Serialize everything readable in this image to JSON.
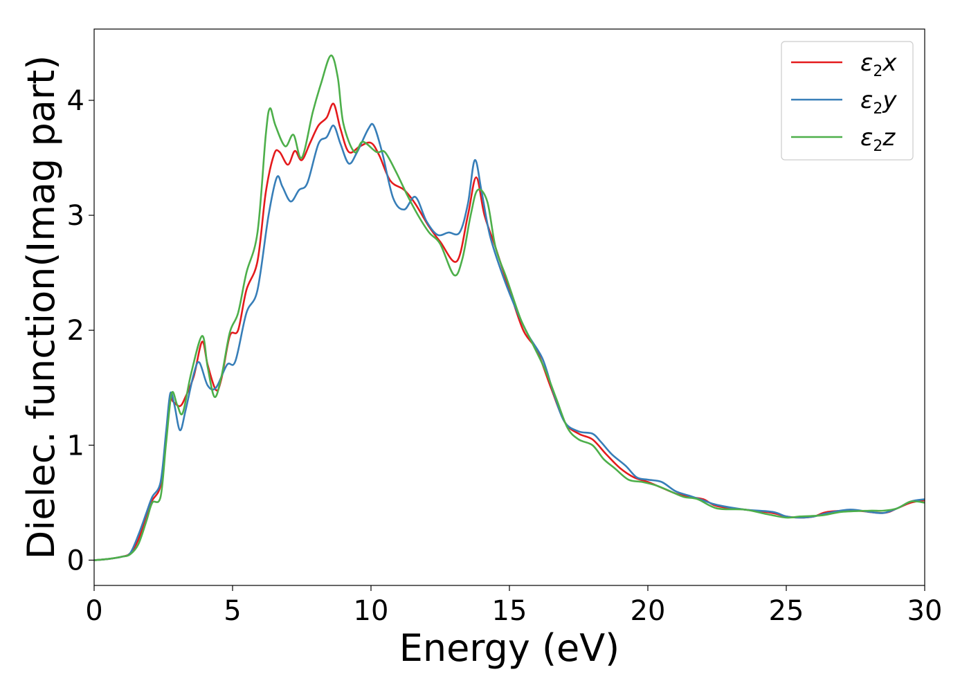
{
  "chart_data": {
    "type": "line",
    "xlabel": "Energy (eV)",
    "ylabel": "Dielec. function(Imag part)",
    "xlim": [
      0,
      30
    ],
    "ylim": [
      -0.22,
      4.62
    ],
    "xticks": [
      0,
      5,
      10,
      15,
      20,
      25,
      30
    ],
    "yticks": [
      0,
      1,
      2,
      3,
      4
    ],
    "grid": false,
    "legend_position": "top-right",
    "series": [
      {
        "name": "ε2x",
        "legend": {
          "symbol": "ε",
          "sub": "2",
          "axis": "x"
        },
        "color": "#e41a1c",
        "points": [
          [
            0,
            0
          ],
          [
            0.5,
            0.01
          ],
          [
            1,
            0.03
          ],
          [
            1.3,
            0.06
          ],
          [
            1.6,
            0.18
          ],
          [
            1.9,
            0.4
          ],
          [
            2.1,
            0.52
          ],
          [
            2.4,
            0.65
          ],
          [
            2.6,
            1.05
          ],
          [
            2.75,
            1.4
          ],
          [
            2.85,
            1.38
          ],
          [
            3.1,
            1.34
          ],
          [
            3.3,
            1.42
          ],
          [
            3.6,
            1.6
          ],
          [
            3.9,
            1.9
          ],
          [
            4.1,
            1.7
          ],
          [
            4.4,
            1.48
          ],
          [
            4.6,
            1.58
          ],
          [
            4.9,
            1.95
          ],
          [
            5.2,
            2.0
          ],
          [
            5.5,
            2.35
          ],
          [
            5.9,
            2.6
          ],
          [
            6.2,
            3.2
          ],
          [
            6.5,
            3.53
          ],
          [
            6.7,
            3.55
          ],
          [
            7.0,
            3.44
          ],
          [
            7.25,
            3.56
          ],
          [
            7.5,
            3.48
          ],
          [
            7.8,
            3.63
          ],
          [
            8.1,
            3.78
          ],
          [
            8.4,
            3.85
          ],
          [
            8.65,
            3.97
          ],
          [
            8.9,
            3.75
          ],
          [
            9.2,
            3.55
          ],
          [
            9.6,
            3.6
          ],
          [
            10.0,
            3.63
          ],
          [
            10.3,
            3.52
          ],
          [
            10.7,
            3.3
          ],
          [
            11.2,
            3.22
          ],
          [
            11.6,
            3.1
          ],
          [
            12.1,
            2.9
          ],
          [
            12.5,
            2.77
          ],
          [
            13.1,
            2.6
          ],
          [
            13.5,
            3.0
          ],
          [
            13.8,
            3.33
          ],
          [
            14.1,
            3.0
          ],
          [
            14.5,
            2.72
          ],
          [
            15.0,
            2.35
          ],
          [
            15.5,
            2.0
          ],
          [
            16.0,
            1.82
          ],
          [
            16.5,
            1.5
          ],
          [
            17.0,
            1.2
          ],
          [
            17.5,
            1.1
          ],
          [
            18.0,
            1.05
          ],
          [
            18.5,
            0.92
          ],
          [
            19.0,
            0.8
          ],
          [
            19.5,
            0.72
          ],
          [
            20.0,
            0.68
          ],
          [
            20.5,
            0.63
          ],
          [
            21.0,
            0.58
          ],
          [
            21.5,
            0.55
          ],
          [
            22.0,
            0.53
          ],
          [
            22.5,
            0.47
          ],
          [
            23.5,
            0.44
          ],
          [
            24.5,
            0.41
          ],
          [
            25.0,
            0.38
          ],
          [
            25.5,
            0.37
          ],
          [
            26.0,
            0.38
          ],
          [
            26.5,
            0.42
          ],
          [
            27.5,
            0.43
          ],
          [
            28.5,
            0.41
          ],
          [
            29.0,
            0.45
          ],
          [
            29.5,
            0.5
          ],
          [
            30.0,
            0.52
          ]
        ]
      },
      {
        "name": "ε2y",
        "legend": {
          "symbol": "ε",
          "sub": "2",
          "axis": "y"
        },
        "color": "#377eb8",
        "points": [
          [
            0,
            0
          ],
          [
            0.5,
            0.01
          ],
          [
            1,
            0.03
          ],
          [
            1.3,
            0.06
          ],
          [
            1.6,
            0.22
          ],
          [
            1.9,
            0.42
          ],
          [
            2.1,
            0.55
          ],
          [
            2.4,
            0.68
          ],
          [
            2.6,
            1.12
          ],
          [
            2.75,
            1.45
          ],
          [
            2.9,
            1.35
          ],
          [
            3.1,
            1.13
          ],
          [
            3.3,
            1.3
          ],
          [
            3.6,
            1.62
          ],
          [
            3.8,
            1.72
          ],
          [
            4.1,
            1.52
          ],
          [
            4.4,
            1.5
          ],
          [
            4.8,
            1.7
          ],
          [
            5.1,
            1.73
          ],
          [
            5.5,
            2.15
          ],
          [
            5.9,
            2.35
          ],
          [
            6.3,
            3.0
          ],
          [
            6.6,
            3.33
          ],
          [
            6.8,
            3.25
          ],
          [
            7.1,
            3.12
          ],
          [
            7.4,
            3.22
          ],
          [
            7.7,
            3.28
          ],
          [
            8.1,
            3.62
          ],
          [
            8.4,
            3.68
          ],
          [
            8.65,
            3.78
          ],
          [
            8.9,
            3.62
          ],
          [
            9.2,
            3.45
          ],
          [
            9.5,
            3.55
          ],
          [
            9.9,
            3.75
          ],
          [
            10.1,
            3.78
          ],
          [
            10.4,
            3.55
          ],
          [
            10.8,
            3.15
          ],
          [
            11.2,
            3.05
          ],
          [
            11.6,
            3.16
          ],
          [
            12.0,
            2.95
          ],
          [
            12.4,
            2.83
          ],
          [
            12.8,
            2.85
          ],
          [
            13.2,
            2.85
          ],
          [
            13.5,
            3.1
          ],
          [
            13.75,
            3.48
          ],
          [
            14.0,
            3.2
          ],
          [
            14.3,
            2.82
          ],
          [
            14.8,
            2.45
          ],
          [
            15.3,
            2.15
          ],
          [
            15.7,
            1.95
          ],
          [
            16.2,
            1.75
          ],
          [
            16.6,
            1.45
          ],
          [
            17.0,
            1.2
          ],
          [
            17.5,
            1.12
          ],
          [
            18.0,
            1.1
          ],
          [
            18.3,
            1.03
          ],
          [
            18.7,
            0.92
          ],
          [
            19.2,
            0.82
          ],
          [
            19.6,
            0.72
          ],
          [
            20.0,
            0.7
          ],
          [
            20.5,
            0.68
          ],
          [
            21.0,
            0.6
          ],
          [
            21.5,
            0.56
          ],
          [
            22.0,
            0.52
          ],
          [
            22.5,
            0.48
          ],
          [
            23.5,
            0.44
          ],
          [
            24.5,
            0.42
          ],
          [
            25.0,
            0.38
          ],
          [
            25.5,
            0.37
          ],
          [
            26.0,
            0.38
          ],
          [
            26.5,
            0.41
          ],
          [
            27.3,
            0.44
          ],
          [
            28.0,
            0.42
          ],
          [
            28.5,
            0.41
          ],
          [
            29.0,
            0.45
          ],
          [
            29.5,
            0.51
          ],
          [
            30.0,
            0.53
          ]
        ]
      },
      {
        "name": "ε2z",
        "legend": {
          "symbol": "ε",
          "sub": "2",
          "axis": "z"
        },
        "color": "#4daf4a",
        "points": [
          [
            0,
            0
          ],
          [
            0.5,
            0.01
          ],
          [
            1,
            0.03
          ],
          [
            1.3,
            0.05
          ],
          [
            1.6,
            0.14
          ],
          [
            1.9,
            0.35
          ],
          [
            2.1,
            0.5
          ],
          [
            2.4,
            0.55
          ],
          [
            2.6,
            1.02
          ],
          [
            2.8,
            1.45
          ],
          [
            3.0,
            1.35
          ],
          [
            3.2,
            1.28
          ],
          [
            3.5,
            1.62
          ],
          [
            3.9,
            1.95
          ],
          [
            4.1,
            1.68
          ],
          [
            4.35,
            1.42
          ],
          [
            4.6,
            1.6
          ],
          [
            4.9,
            1.98
          ],
          [
            5.2,
            2.15
          ],
          [
            5.5,
            2.5
          ],
          [
            5.9,
            2.85
          ],
          [
            6.2,
            3.7
          ],
          [
            6.35,
            3.93
          ],
          [
            6.55,
            3.78
          ],
          [
            6.9,
            3.6
          ],
          [
            7.2,
            3.7
          ],
          [
            7.5,
            3.5
          ],
          [
            7.9,
            3.9
          ],
          [
            8.2,
            4.15
          ],
          [
            8.55,
            4.39
          ],
          [
            8.8,
            4.2
          ],
          [
            9.0,
            3.8
          ],
          [
            9.4,
            3.55
          ],
          [
            9.7,
            3.64
          ],
          [
            10.2,
            3.55
          ],
          [
            10.5,
            3.55
          ],
          [
            10.9,
            3.38
          ],
          [
            11.3,
            3.18
          ],
          [
            11.7,
            3.0
          ],
          [
            12.1,
            2.85
          ],
          [
            12.5,
            2.75
          ],
          [
            13.0,
            2.48
          ],
          [
            13.3,
            2.62
          ],
          [
            13.6,
            3.0
          ],
          [
            13.85,
            3.22
          ],
          [
            14.2,
            3.12
          ],
          [
            14.5,
            2.72
          ],
          [
            14.9,
            2.45
          ],
          [
            15.4,
            2.1
          ],
          [
            15.8,
            1.9
          ],
          [
            16.3,
            1.65
          ],
          [
            16.7,
            1.4
          ],
          [
            17.1,
            1.15
          ],
          [
            17.5,
            1.05
          ],
          [
            18.0,
            1.0
          ],
          [
            18.4,
            0.88
          ],
          [
            18.8,
            0.8
          ],
          [
            19.3,
            0.7
          ],
          [
            19.8,
            0.68
          ],
          [
            20.3,
            0.65
          ],
          [
            20.8,
            0.6
          ],
          [
            21.3,
            0.55
          ],
          [
            21.8,
            0.53
          ],
          [
            22.5,
            0.45
          ],
          [
            23.5,
            0.44
          ],
          [
            24.3,
            0.4
          ],
          [
            25.0,
            0.37
          ],
          [
            25.5,
            0.38
          ],
          [
            26.3,
            0.39
          ],
          [
            27.0,
            0.42
          ],
          [
            28.0,
            0.43
          ],
          [
            28.5,
            0.43
          ],
          [
            29.0,
            0.45
          ],
          [
            29.5,
            0.51
          ],
          [
            30.0,
            0.5
          ]
        ]
      }
    ]
  }
}
